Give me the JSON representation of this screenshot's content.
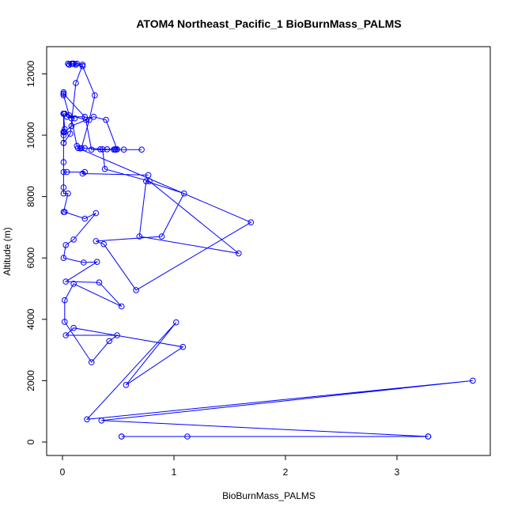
{
  "chart_data": {
    "type": "line",
    "title": "ATOM4 Northeast_Pacific_1 BioBurnMass_PALMS",
    "xlabel": "BioBurnMass_PALMS",
    "ylabel": "Altitude (m)",
    "xlim": [
      0,
      3.75
    ],
    "ylim": [
      0,
      12500
    ],
    "x_ticks": [
      0,
      1,
      2,
      3
    ],
    "y_ticks": [
      0,
      2000,
      4000,
      6000,
      8000,
      10000,
      12000
    ],
    "grid": false,
    "legend": "none",
    "marker": "open-circle",
    "color": "#0000ff",
    "series": [
      {
        "x": [
          1.12,
          0.53,
          0.53,
          3.28,
          3.28,
          0.35,
          3.68,
          0.22,
          1.02,
          0.57,
          1.08,
          0.1,
          0.03,
          0.49,
          0.42,
          0.26,
          0.02,
          0.02,
          0.1,
          0.53,
          0.33,
          0.03,
          0.31,
          0.19,
          0.01,
          0.03,
          0.1,
          0.3,
          0.2,
          0.02,
          0.01,
          0.05,
          0.01,
          0.01,
          0.01,
          0.01,
          0.01,
          0.02,
          0.08,
          0.28,
          0.39,
          0.49,
          0.47,
          0.4,
          0.34,
          0.36,
          0.38,
          0.78,
          1.58,
          0.69,
          0.75,
          1.09,
          0.89,
          0.3,
          0.37,
          0.66,
          1.69,
          0.14,
          0.16,
          0.13,
          0.08,
          0.06,
          0.01,
          0.01,
          0.01,
          0.01,
          0.2,
          0.04,
          0.11,
          0.02,
          0.21,
          0.26,
          0.71,
          0.55,
          0.48,
          0.46,
          0.2,
          0.17,
          0.24,
          0.29,
          0.18,
          0.12,
          0.09,
          0.06,
          0.06,
          0.05,
          0.08,
          0.1,
          0.1,
          0.13,
          0.18,
          0.12,
          0.07,
          0.01,
          0.01,
          0.02,
          0.01,
          0.01,
          0.01,
          0.02,
          0.01,
          0.01,
          0.01,
          0.01,
          0.01,
          0.01,
          0.04,
          0.2,
          0.18,
          0.77
        ],
        "y": [
          180,
          180,
          180,
          180,
          180,
          700,
          2000,
          740,
          3900,
          1860,
          3100,
          3720,
          3480,
          3480,
          3290,
          2600,
          3920,
          4620,
          5160,
          4420,
          5200,
          5230,
          5870,
          5850,
          6000,
          6420,
          6600,
          7460,
          7280,
          7500,
          7500,
          8100,
          8100,
          8300,
          9120,
          9750,
          10000,
          10100,
          10300,
          10600,
          10500,
          9540,
          9540,
          9540,
          9540,
          9540,
          8900,
          8500,
          6150,
          6700,
          8500,
          8100,
          6700,
          6550,
          6450,
          4950,
          7160,
          9580,
          9570,
          9650,
          10550,
          10650,
          11300,
          11350,
          11400,
          11350,
          10600,
          10600,
          10550,
          10700,
          10500,
          9530,
          9530,
          9530,
          9530,
          9530,
          9580,
          9580,
          10500,
          11300,
          12250,
          12300,
          12330,
          12300,
          12300,
          12330,
          12330,
          12330,
          12330,
          12330,
          12300,
          11700,
          10050,
          9750,
          10700,
          10700,
          10700,
          10700,
          10700,
          10200,
          10100,
          10100,
          10100,
          10100,
          10100,
          8800,
          8800,
          8800,
          8750,
          8700
        ]
      }
    ]
  }
}
